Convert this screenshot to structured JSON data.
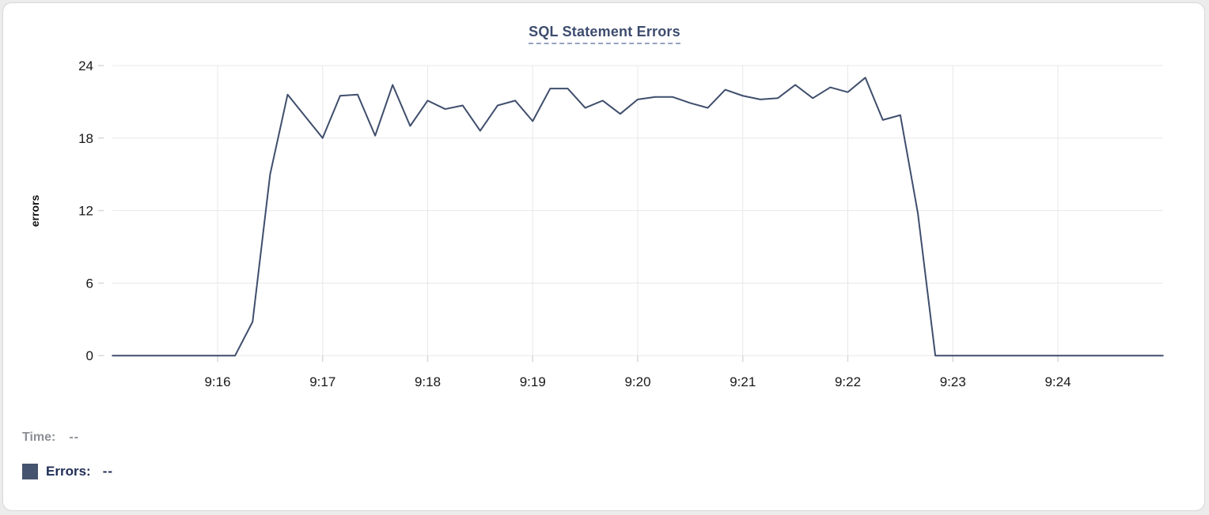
{
  "page": {
    "background": "#ececec",
    "panel_background": "#ffffff",
    "panel_border": "#d8d8d8"
  },
  "chart_data": {
    "type": "line",
    "title": "SQL Statement Errors",
    "ylabel": "errors",
    "xlabel": "",
    "x_start": "9:15:00",
    "x_end": "9:25:00",
    "x_interval_seconds": 10,
    "x_tick_labels": [
      "9:16",
      "9:17",
      "9:18",
      "9:19",
      "9:20",
      "9:21",
      "9:22",
      "9:23",
      "9:24"
    ],
    "y_ticks": [
      0,
      6,
      12,
      18,
      24
    ],
    "ylim": [
      0,
      24
    ],
    "grid": true,
    "legend_position": "bottom-left",
    "series": [
      {
        "name": "Errors",
        "color": "#3f4e6c",
        "values": [
          0,
          0,
          0,
          0,
          0,
          0,
          0,
          0,
          2.8,
          15,
          21.6,
          19.8,
          18,
          21.5,
          21.6,
          18.2,
          22.4,
          19,
          21.1,
          20.4,
          20.7,
          18.6,
          20.7,
          21.1,
          19.4,
          22.1,
          22.1,
          20.5,
          21.1,
          20,
          21.2,
          21.4,
          21.4,
          20.9,
          20.5,
          22,
          21.5,
          21.2,
          21.3,
          22.4,
          21.3,
          22.2,
          21.8,
          23,
          19.5,
          19.9,
          11.8,
          0,
          0,
          0,
          0,
          0,
          0,
          0,
          0,
          0,
          0,
          0,
          0,
          0,
          0
        ]
      }
    ],
    "title_color": "#3d4c6e",
    "title_underline_color": "#96a3c0",
    "gridline_color": "#e8e8e8",
    "tick_color": "#d9d9d9",
    "axis_text_color": "#17181a"
  },
  "tooltip_legend": {
    "time_label": "Time:",
    "time_value": "--",
    "time_color": "#8c8f96",
    "errors_label": "Errors:",
    "errors_value": "--",
    "errors_color": "#1f2d55",
    "swatch_color": "#44536e"
  }
}
